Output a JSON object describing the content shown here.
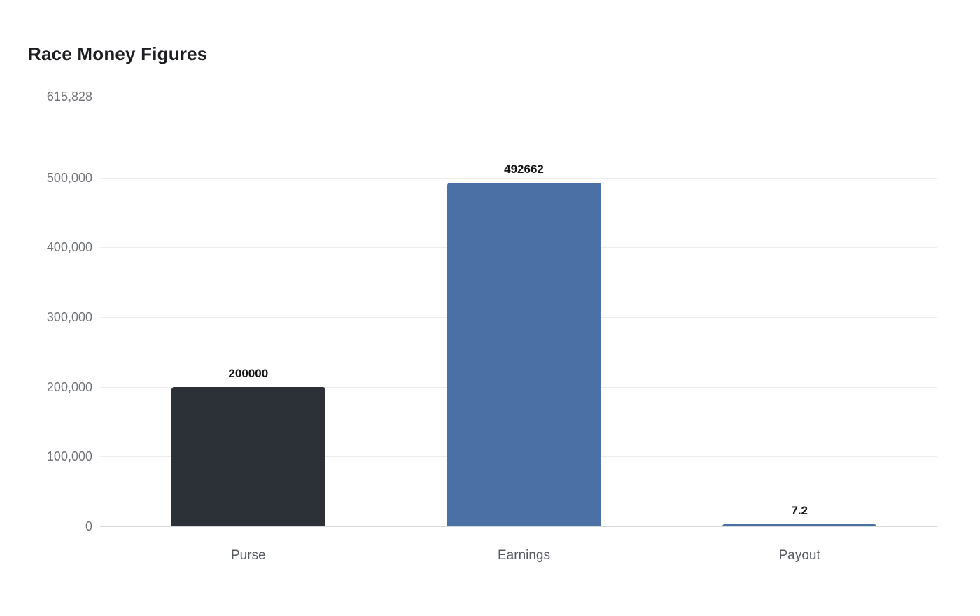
{
  "page": {
    "background": "#ffffff"
  },
  "chart_data": {
    "type": "bar",
    "title": "Race Money Figures",
    "categories": [
      "Purse",
      "Earnings",
      "Payout"
    ],
    "values": [
      200000,
      492662,
      7.2
    ],
    "value_labels": [
      "200000",
      "492662",
      "7.2"
    ],
    "bar_colors": [
      "#2b3137",
      "#4b70a6",
      "#4b70a6"
    ],
    "xlabel": "",
    "ylabel": "",
    "grid": true,
    "legend": "none",
    "y_axis": {
      "min": 0,
      "max": 615828,
      "tick_values": [
        0,
        100000,
        200000,
        300000,
        400000,
        500000,
        615828
      ],
      "tick_labels": [
        "0",
        "100,000",
        "200,000",
        "300,000",
        "400,000",
        "500,000",
        "615,828"
      ]
    },
    "styles": {
      "grid_color": "#ececec",
      "baseline_color": "#d6d9dc",
      "axis_line_color": "#e4e6e8",
      "tick_label_color": "#6f7276",
      "category_label_color": "#555a60",
      "value_label_color": "#141414",
      "title_color": "#1c1e21"
    }
  }
}
